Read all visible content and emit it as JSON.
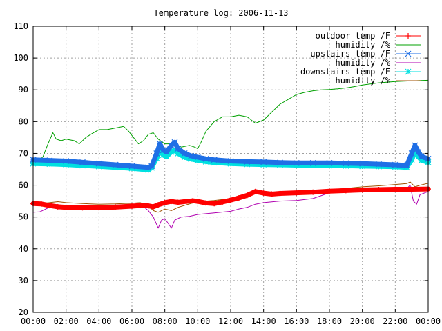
{
  "chart_data": {
    "type": "line",
    "title": "Temperature log: 2006-11-13",
    "xlabel": "",
    "ylabel": "",
    "xlim": [
      0,
      24
    ],
    "ylim": [
      20,
      110
    ],
    "x_ticks": [
      {
        "v": 0,
        "label": "00:00"
      },
      {
        "v": 2,
        "label": "02:00"
      },
      {
        "v": 4,
        "label": "04:00"
      },
      {
        "v": 6,
        "label": "06:00"
      },
      {
        "v": 8,
        "label": "08:00"
      },
      {
        "v": 10,
        "label": "10:00"
      },
      {
        "v": 12,
        "label": "12:00"
      },
      {
        "v": 14,
        "label": "14:00"
      },
      {
        "v": 16,
        "label": "16:00"
      },
      {
        "v": 18,
        "label": "18:00"
      },
      {
        "v": 20,
        "label": "20:00"
      },
      {
        "v": 22,
        "label": "22:00"
      },
      {
        "v": 24,
        "label": "00:00"
      }
    ],
    "y_ticks": [
      {
        "v": 20,
        "label": "20"
      },
      {
        "v": 30,
        "label": "30"
      },
      {
        "v": 40,
        "label": "40"
      },
      {
        "v": 50,
        "label": "50"
      },
      {
        "v": 60,
        "label": "60"
      },
      {
        "v": 70,
        "label": "70"
      },
      {
        "v": 80,
        "label": "80"
      },
      {
        "v": 90,
        "label": "90"
      },
      {
        "v": 100,
        "label": "100"
      },
      {
        "v": 110,
        "label": "110"
      }
    ],
    "grid": true,
    "legend_position": "top-right",
    "series": [
      {
        "name": "outdoor temp /F",
        "color": "#ff0000",
        "marker": "plus",
        "thick": true,
        "points": [
          [
            0,
            54.2
          ],
          [
            0.5,
            54.1
          ],
          [
            1,
            53.6
          ],
          [
            1.5,
            53.2
          ],
          [
            2,
            53.0
          ],
          [
            3,
            52.9
          ],
          [
            4,
            52.9
          ],
          [
            5,
            53.1
          ],
          [
            6,
            53.4
          ],
          [
            6.5,
            53.6
          ],
          [
            7,
            53.5
          ],
          [
            7.3,
            53.2
          ],
          [
            7.6,
            53.8
          ],
          [
            8,
            54.5
          ],
          [
            8.4,
            54.9
          ],
          [
            8.8,
            54.6
          ],
          [
            9.3,
            54.9
          ],
          [
            9.7,
            55.1
          ],
          [
            10,
            54.9
          ],
          [
            10.5,
            54.4
          ],
          [
            11,
            54.2
          ],
          [
            11.5,
            54.7
          ],
          [
            12,
            55.3
          ],
          [
            12.5,
            56.0
          ],
          [
            13,
            56.8
          ],
          [
            13.5,
            58.0
          ],
          [
            14,
            57.5
          ],
          [
            14.5,
            57.2
          ],
          [
            15,
            57.4
          ],
          [
            16,
            57.6
          ],
          [
            17,
            57.8
          ],
          [
            18,
            58.1
          ],
          [
            19,
            58.3
          ],
          [
            20,
            58.5
          ],
          [
            21,
            58.6
          ],
          [
            22,
            58.7
          ],
          [
            23,
            58.7
          ],
          [
            24,
            58.8
          ]
        ]
      },
      {
        "name": "humidity /%",
        "color": "#00a000",
        "marker": "none",
        "thick": false,
        "points": [
          [
            0,
            68
          ],
          [
            0.3,
            67.5
          ],
          [
            0.6,
            69
          ],
          [
            0.9,
            73
          ],
          [
            1.2,
            76.5
          ],
          [
            1.4,
            74.5
          ],
          [
            1.7,
            74
          ],
          [
            2,
            74.5
          ],
          [
            2.5,
            74
          ],
          [
            2.8,
            73
          ],
          [
            3.2,
            75
          ],
          [
            3.5,
            76
          ],
          [
            4,
            77.5
          ],
          [
            4.5,
            77.5
          ],
          [
            5,
            78
          ],
          [
            5.5,
            78.5
          ],
          [
            5.8,
            77
          ],
          [
            6.1,
            75
          ],
          [
            6.4,
            73
          ],
          [
            6.7,
            74
          ],
          [
            7,
            76
          ],
          [
            7.3,
            76.5
          ],
          [
            7.6,
            74.5
          ],
          [
            8,
            73
          ],
          [
            8.5,
            73
          ],
          [
            9,
            72
          ],
          [
            9.5,
            72.5
          ],
          [
            9.8,
            72
          ],
          [
            10,
            71.5
          ],
          [
            10.2,
            73.5
          ],
          [
            10.5,
            77
          ],
          [
            11,
            80
          ],
          [
            11.5,
            81.5
          ],
          [
            12,
            81.5
          ],
          [
            12.5,
            82
          ],
          [
            13,
            81.5
          ],
          [
            13.5,
            79.5
          ],
          [
            14,
            80.5
          ],
          [
            14.5,
            83
          ],
          [
            15,
            85.5
          ],
          [
            15.5,
            87
          ],
          [
            16,
            88.5
          ],
          [
            16.5,
            89.2
          ],
          [
            17,
            89.7
          ],
          [
            17.5,
            90
          ],
          [
            18,
            90.1
          ],
          [
            18.5,
            90.3
          ],
          [
            19,
            90.6
          ],
          [
            19.5,
            91
          ],
          [
            20,
            91.5
          ],
          [
            21,
            92.2
          ],
          [
            22,
            92.6
          ],
          [
            23,
            92.8
          ],
          [
            24,
            93
          ]
        ]
      },
      {
        "name": "upstairs temp /F",
        "color": "#1f6fe6",
        "marker": "x",
        "thick": true,
        "points": [
          [
            0,
            68
          ],
          [
            1,
            67.8
          ],
          [
            2,
            67.6
          ],
          [
            3,
            67.2
          ],
          [
            4,
            66.8
          ],
          [
            5,
            66.4
          ],
          [
            6,
            66
          ],
          [
            7,
            65.6
          ],
          [
            7.2,
            66
          ],
          [
            7.5,
            70
          ],
          [
            7.7,
            73
          ],
          [
            7.9,
            71
          ],
          [
            8.1,
            70.5
          ],
          [
            8.4,
            72.5
          ],
          [
            8.6,
            73.5
          ],
          [
            8.8,
            71.5
          ],
          [
            9.2,
            70
          ],
          [
            9.6,
            69.2
          ],
          [
            10,
            68.8
          ],
          [
            10.5,
            68.3
          ],
          [
            11,
            68
          ],
          [
            12,
            67.6
          ],
          [
            13,
            67.4
          ],
          [
            14,
            67.3
          ],
          [
            15,
            67.1
          ],
          [
            16,
            67
          ],
          [
            17,
            67
          ],
          [
            18,
            67
          ],
          [
            19,
            66.9
          ],
          [
            20,
            66.8
          ],
          [
            21,
            66.6
          ],
          [
            22,
            66.4
          ],
          [
            22.7,
            66.2
          ],
          [
            23,
            70
          ],
          [
            23.2,
            72.5
          ],
          [
            23.4,
            70.5
          ],
          [
            23.6,
            69
          ],
          [
            24,
            68.3
          ]
        ]
      },
      {
        "name": "humidity /%",
        "color": "#b000b0",
        "marker": "none",
        "thick": false,
        "points": [
          [
            0,
            51.5
          ],
          [
            0.4,
            51.6
          ],
          [
            0.8,
            52.6
          ],
          [
            1.2,
            53.5
          ],
          [
            2,
            53.4
          ],
          [
            3,
            53.3
          ],
          [
            4,
            53.3
          ],
          [
            5,
            53.4
          ],
          [
            6,
            53.5
          ],
          [
            6.6,
            53.7
          ],
          [
            7,
            52
          ],
          [
            7.3,
            50
          ],
          [
            7.6,
            46.5
          ],
          [
            7.8,
            49
          ],
          [
            8,
            49.5
          ],
          [
            8.2,
            48
          ],
          [
            8.4,
            46.5
          ],
          [
            8.6,
            49
          ],
          [
            9,
            50
          ],
          [
            9.5,
            50.2
          ],
          [
            10,
            50.8
          ],
          [
            11,
            51.3
          ],
          [
            12,
            51.8
          ],
          [
            12.5,
            52.5
          ],
          [
            13,
            53
          ],
          [
            13.5,
            54
          ],
          [
            14,
            54.5
          ],
          [
            15,
            55
          ],
          [
            16,
            55.2
          ],
          [
            17,
            55.8
          ],
          [
            18,
            57.6
          ],
          [
            19,
            57.8
          ],
          [
            20,
            58.1
          ],
          [
            21,
            58.3
          ],
          [
            22,
            58.6
          ],
          [
            22.7,
            58.9
          ],
          [
            22.9,
            60
          ],
          [
            23.1,
            55
          ],
          [
            23.3,
            54
          ],
          [
            23.5,
            57
          ],
          [
            24,
            58
          ]
        ]
      },
      {
        "name": "downstairs temp /F",
        "color": "#00e0e0",
        "marker": "star",
        "thick": true,
        "points": [
          [
            0,
            66.8
          ],
          [
            1,
            66.7
          ],
          [
            2,
            66.5
          ],
          [
            3,
            66.2
          ],
          [
            4,
            65.9
          ],
          [
            5,
            65.6
          ],
          [
            6,
            65.3
          ],
          [
            7,
            64.8
          ],
          [
            7.2,
            65.5
          ],
          [
            7.5,
            68.5
          ],
          [
            7.7,
            71
          ],
          [
            7.9,
            69.5
          ],
          [
            8.1,
            69
          ],
          [
            8.4,
            70.5
          ],
          [
            8.6,
            71
          ],
          [
            8.8,
            70
          ],
          [
            9.2,
            68.8
          ],
          [
            9.6,
            68.2
          ],
          [
            10,
            67.8
          ],
          [
            10.5,
            67.4
          ],
          [
            11,
            67.1
          ],
          [
            12,
            66.8
          ],
          [
            13,
            66.6
          ],
          [
            14,
            66.5
          ],
          [
            15,
            66.4
          ],
          [
            16,
            66.3
          ],
          [
            17,
            66.3
          ],
          [
            18,
            66.2
          ],
          [
            19,
            66.1
          ],
          [
            20,
            66
          ],
          [
            21,
            65.9
          ],
          [
            22,
            65.8
          ],
          [
            22.7,
            65.6
          ],
          [
            23,
            68
          ],
          [
            23.2,
            70.5
          ],
          [
            23.4,
            69
          ],
          [
            23.6,
            67.8
          ],
          [
            24,
            67.2
          ]
        ]
      },
      {
        "name": "humidity /%",
        "color": "#a05000",
        "marker": "none",
        "thick": false,
        "points": [
          [
            0,
            54
          ],
          [
            0.5,
            54.2
          ],
          [
            1,
            54.5
          ],
          [
            1.5,
            54.8
          ],
          [
            2,
            54.5
          ],
          [
            3,
            54.2
          ],
          [
            4,
            54
          ],
          [
            5,
            54.1
          ],
          [
            6,
            54.3
          ],
          [
            6.5,
            54.5
          ],
          [
            7,
            53.5
          ],
          [
            7.3,
            52
          ],
          [
            7.6,
            51.5
          ],
          [
            8,
            52.5
          ],
          [
            8.4,
            52
          ],
          [
            8.8,
            53
          ],
          [
            9.3,
            53.8
          ],
          [
            10,
            54.8
          ],
          [
            11,
            55.2
          ],
          [
            12,
            55.8
          ],
          [
            12.5,
            56.5
          ],
          [
            13,
            57
          ],
          [
            13.5,
            58.2
          ],
          [
            14,
            57.8
          ],
          [
            15,
            57.6
          ],
          [
            16,
            58
          ],
          [
            17,
            58.2
          ],
          [
            18,
            58.6
          ],
          [
            19,
            59
          ],
          [
            20,
            59.5
          ],
          [
            21,
            59.8
          ],
          [
            22,
            60.2
          ],
          [
            22.7,
            60.5
          ],
          [
            22.9,
            61
          ],
          [
            23.2,
            59.5
          ],
          [
            23.5,
            60
          ],
          [
            24,
            60.6
          ]
        ]
      }
    ]
  }
}
